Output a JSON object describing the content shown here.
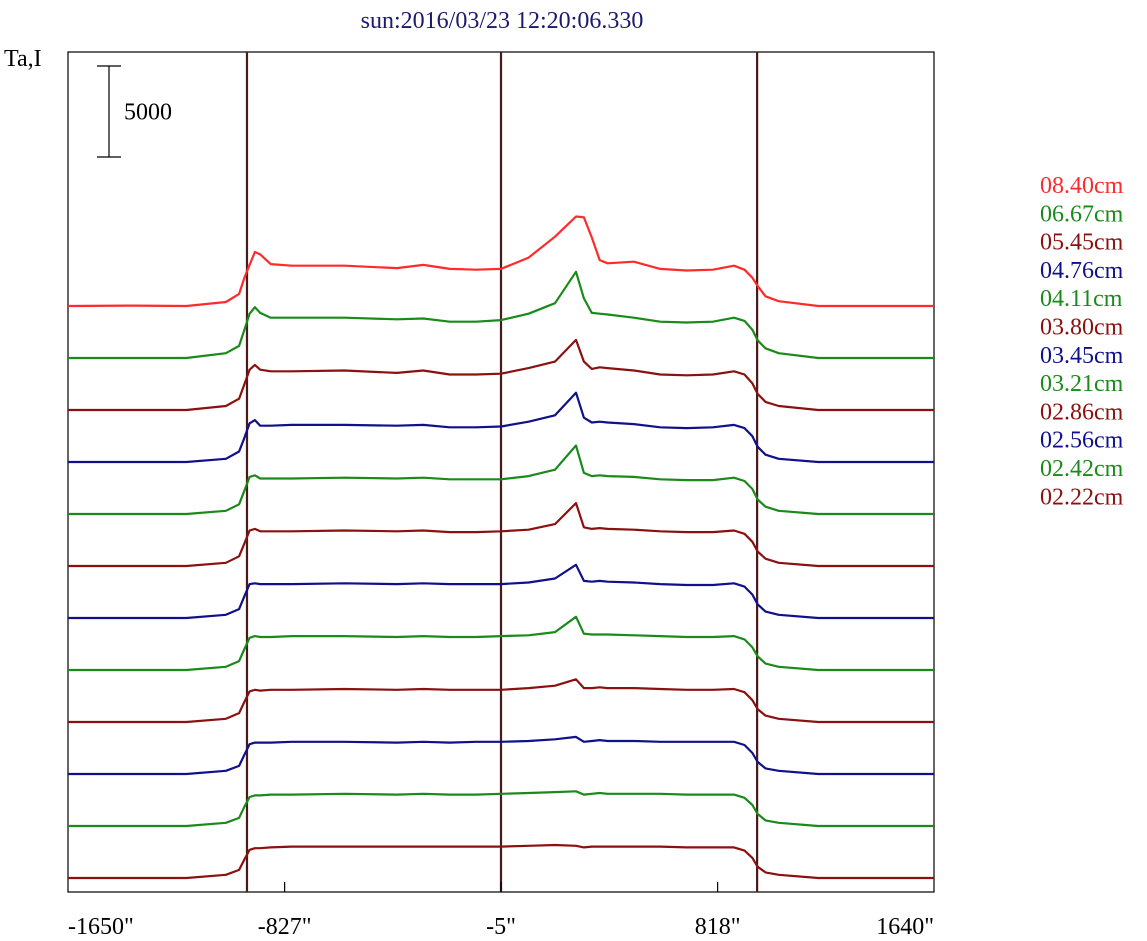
{
  "chart_data": {
    "type": "line",
    "title": "sun:2016/03/23 12:20:06.330",
    "ylabel": "Ta,I",
    "scale_bar_label": "5000",
    "scale_bar_value": 5000,
    "xlim": [
      -1650,
      1640
    ],
    "x_ticks": [
      {
        "value": -1650,
        "label": "-1650\""
      },
      {
        "value": -827,
        "label": "-827\""
      },
      {
        "value": -5,
        "label": "-5\""
      },
      {
        "value": 818,
        "label": "818\""
      },
      {
        "value": 1640,
        "label": "1640\""
      }
    ],
    "vertical_markers": [
      -970,
      -5,
      968
    ],
    "grid": false,
    "legend_position": "right",
    "colors": {
      "red": "#ff2a2a",
      "green": "#1a8a1a",
      "darkred": "#8b1010",
      "blue": "#10108b",
      "marker": "#4a1a1a",
      "title": "#1a1a6e"
    },
    "x": [
      -1650,
      -1400,
      -1200,
      -1050,
      -1000,
      -980,
      -960,
      -940,
      -920,
      -880,
      -800,
      -600,
      -400,
      -300,
      -200,
      -100,
      -5,
      100,
      200,
      280,
      310,
      340,
      370,
      400,
      500,
      600,
      700,
      800,
      880,
      920,
      950,
      970,
      1000,
      1050,
      1200,
      1400,
      1640
    ],
    "series": [
      {
        "name": "08.40cm",
        "color": "#ff2a2a",
        "offset": 11000,
        "values": [
          0,
          50,
          0,
          500,
          1500,
          3500,
          5100,
          6700,
          6400,
          5200,
          5000,
          5000,
          4700,
          5100,
          4600,
          4500,
          4600,
          6000,
          8600,
          11100,
          11000,
          8500,
          5700,
          5300,
          5500,
          4600,
          4400,
          4500,
          5000,
          4500,
          3500,
          2500,
          1200,
          600,
          0,
          0,
          0
        ]
      },
      {
        "name": "06.67cm",
        "color": "#1a8a1a",
        "offset": 10000,
        "values": [
          0,
          0,
          0,
          600,
          1500,
          3500,
          5500,
          6300,
          5600,
          5000,
          5000,
          5000,
          4800,
          4900,
          4500,
          4500,
          4700,
          5500,
          6800,
          10700,
          7400,
          5600,
          5500,
          5400,
          5000,
          4500,
          4400,
          4500,
          5000,
          4600,
          3500,
          2200,
          1200,
          600,
          0,
          0,
          0
        ]
      },
      {
        "name": "05.45cm",
        "color": "#8b1010",
        "offset": 9000,
        "values": [
          0,
          0,
          0,
          500,
          1400,
          3200,
          5000,
          5600,
          5000,
          4800,
          4800,
          4900,
          4600,
          4900,
          4400,
          4400,
          4500,
          5200,
          6000,
          8700,
          6000,
          5100,
          5300,
          5200,
          4900,
          4400,
          4300,
          4400,
          4800,
          4400,
          3300,
          2000,
          1000,
          500,
          0,
          0,
          0
        ]
      },
      {
        "name": "04.76cm",
        "color": "#10108b",
        "offset": 8000,
        "values": [
          0,
          0,
          0,
          400,
          1300,
          3000,
          4800,
          5200,
          4500,
          4500,
          4600,
          4600,
          4500,
          4600,
          4300,
          4300,
          4400,
          5000,
          5800,
          8600,
          5500,
          4900,
          5000,
          4900,
          4700,
          4300,
          4200,
          4300,
          4600,
          4200,
          3200,
          1900,
          900,
          400,
          0,
          0,
          0
        ]
      },
      {
        "name": "04.11cm",
        "color": "#1a8a1a",
        "offset": 7000,
        "values": [
          0,
          0,
          0,
          400,
          1200,
          2900,
          4600,
          4800,
          4400,
          4400,
          4400,
          4500,
          4400,
          4500,
          4300,
          4300,
          4300,
          4700,
          5500,
          8500,
          5100,
          4700,
          4800,
          4700,
          4600,
          4300,
          4200,
          4200,
          4500,
          4100,
          3100,
          1800,
          900,
          400,
          0,
          0,
          0
        ]
      },
      {
        "name": "03.80cm",
        "color": "#8b1010",
        "offset": 6000,
        "values": [
          0,
          0,
          0,
          400,
          1200,
          2800,
          4400,
          4600,
          4300,
          4300,
          4300,
          4400,
          4300,
          4400,
          4200,
          4200,
          4300,
          4500,
          5200,
          7800,
          4800,
          4600,
          4700,
          4600,
          4500,
          4300,
          4200,
          4200,
          4400,
          4000,
          3000,
          1800,
          900,
          400,
          0,
          0,
          0
        ]
      },
      {
        "name": "03.45cm",
        "color": "#10108b",
        "offset": 5000,
        "values": [
          0,
          0,
          0,
          400,
          1100,
          2700,
          4200,
          4300,
          4200,
          4200,
          4200,
          4300,
          4200,
          4300,
          4200,
          4200,
          4200,
          4400,
          4900,
          6600,
          4600,
          4500,
          4600,
          4500,
          4400,
          4200,
          4100,
          4100,
          4300,
          3900,
          2900,
          1700,
          800,
          400,
          0,
          0,
          0
        ]
      },
      {
        "name": "03.21cm",
        "color": "#1a8a1a",
        "offset": 4000,
        "values": [
          0,
          0,
          0,
          400,
          1100,
          2600,
          4000,
          4200,
          4100,
          4100,
          4200,
          4200,
          4100,
          4200,
          4100,
          4100,
          4200,
          4300,
          4700,
          6600,
          4500,
          4400,
          4400,
          4400,
          4300,
          4200,
          4100,
          4100,
          4200,
          3800,
          2800,
          1700,
          800,
          400,
          0,
          0,
          0
        ]
      },
      {
        "name": "02.86cm",
        "color": "#8b1010",
        "offset": 3000,
        "values": [
          0,
          0,
          0,
          400,
          1100,
          2500,
          3800,
          4000,
          3900,
          4000,
          4000,
          4100,
          4000,
          4100,
          4000,
          4000,
          4000,
          4200,
          4500,
          5300,
          4200,
          4200,
          4300,
          4200,
          4200,
          4100,
          4000,
          4000,
          4100,
          3700,
          2700,
          1600,
          800,
          400,
          0,
          0,
          0
        ]
      },
      {
        "name": "02.56cm",
        "color": "#10108b",
        "offset": 2000,
        "values": [
          0,
          0,
          0,
          400,
          1000,
          2400,
          3700,
          3900,
          3900,
          3900,
          4000,
          4000,
          3900,
          4000,
          3900,
          4000,
          4000,
          4100,
          4300,
          4600,
          4000,
          4100,
          4200,
          4100,
          4100,
          4000,
          4000,
          4000,
          4000,
          3600,
          2600,
          1500,
          700,
          400,
          0,
          0,
          0
        ]
      },
      {
        "name": "02.42cm",
        "color": "#1a8a1a",
        "offset": 1000,
        "values": [
          0,
          0,
          0,
          400,
          1000,
          2400,
          3600,
          3800,
          3800,
          3900,
          3900,
          4000,
          3900,
          4000,
          3900,
          3900,
          4000,
          4100,
          4200,
          4300,
          3900,
          4000,
          4100,
          4000,
          4000,
          4000,
          3900,
          3900,
          3900,
          3500,
          2600,
          1500,
          700,
          400,
          0,
          0,
          0
        ]
      },
      {
        "name": "02.22cm",
        "color": "#8b1010",
        "offset": 0,
        "values": [
          0,
          0,
          0,
          400,
          1000,
          2300,
          3500,
          3700,
          3700,
          3800,
          3900,
          3900,
          3900,
          3900,
          3900,
          3900,
          3900,
          4000,
          4100,
          4000,
          3800,
          3900,
          3900,
          3900,
          3900,
          3900,
          3800,
          3800,
          3800,
          3400,
          2500,
          1400,
          700,
          400,
          0,
          0,
          0
        ]
      }
    ]
  }
}
